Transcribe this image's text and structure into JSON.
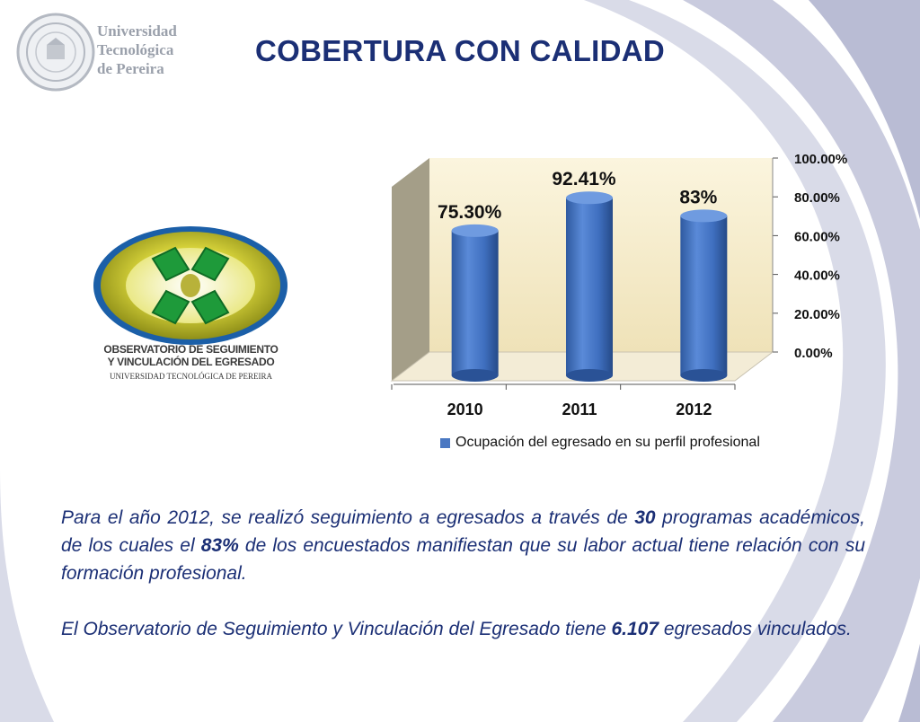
{
  "header": {
    "university_name_lines": [
      "Universidad",
      "Tecnológica",
      "de Pereira"
    ],
    "title": "COBERTURA CON CALIDAD"
  },
  "observatorio_logo": {
    "line1": "OBSERVATORIO DE SEGUIMIENTO",
    "line2": "Y VINCULACIÓN DEL EGRESADO",
    "line3": "UNIVERSIDAD TECNOLÓGICA DE PEREIRA"
  },
  "chart_data": {
    "type": "bar",
    "style": "3d-cylinder",
    "categories": [
      "2010",
      "2011",
      "2012"
    ],
    "series": [
      {
        "name": "Ocupación del egresado en su perfil profesional",
        "values": [
          75.3,
          92.41,
          83
        ]
      }
    ],
    "data_labels": [
      "75.30%",
      "92.41%",
      "83%"
    ],
    "y_ticks": [
      "0.00%",
      "20.00%",
      "40.00%",
      "60.00%",
      "80.00%",
      "100.00%"
    ],
    "ylim": [
      0,
      100
    ],
    "y_axis_side": "right",
    "legend_position": "bottom",
    "grid": false,
    "colors": {
      "bar": "#3f6fbf",
      "wall": "#f7edcf",
      "side_wall": "#a09a86"
    }
  },
  "paragraphs": {
    "p1": {
      "t1": "Para el año 2012, se realizó seguimiento a egresados  a través de ",
      "b1": "30",
      "t2": " programas académicos, de los cuales el ",
      "b2": "83%",
      "t3": " de los encuestados manifiestan que su labor actual tiene relación con su formación profesional."
    },
    "p2": {
      "t1": "El Observatorio de Seguimiento y Vinculación del Egresado tiene ",
      "b1": "6.107",
      "t2": " egresados vinculados."
    }
  }
}
